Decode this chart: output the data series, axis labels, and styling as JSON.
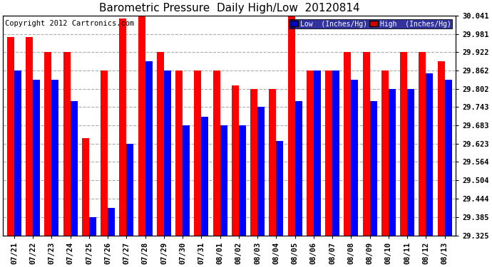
{
  "title": "Barometric Pressure  Daily High/Low  20120814",
  "copyright": "Copyright 2012 Cartronics.com",
  "dates": [
    "07/21",
    "07/22",
    "07/23",
    "07/24",
    "07/25",
    "07/26",
    "07/27",
    "07/28",
    "07/29",
    "07/30",
    "07/31",
    "08/01",
    "08/02",
    "08/03",
    "08/04",
    "08/05",
    "08/06",
    "08/07",
    "08/08",
    "08/09",
    "08/10",
    "08/11",
    "08/12",
    "08/13"
  ],
  "high": [
    29.971,
    29.971,
    29.922,
    29.922,
    29.642,
    29.862,
    30.031,
    30.041,
    29.922,
    29.862,
    29.862,
    29.862,
    29.812,
    29.802,
    29.802,
    30.041,
    29.862,
    29.862,
    29.922,
    29.922,
    29.862,
    29.922,
    29.922,
    29.892
  ],
  "low": [
    29.862,
    29.832,
    29.832,
    29.762,
    29.385,
    29.415,
    29.622,
    29.892,
    29.862,
    29.683,
    29.712,
    29.683,
    29.683,
    29.743,
    29.633,
    29.762,
    29.862,
    29.862,
    29.832,
    29.762,
    29.802,
    29.802,
    29.852,
    29.832
  ],
  "ylim_min": 29.325,
  "ylim_max": 30.041,
  "yticks": [
    29.325,
    29.385,
    29.444,
    29.504,
    29.564,
    29.623,
    29.683,
    29.743,
    29.802,
    29.862,
    29.922,
    29.981,
    30.041
  ],
  "bar_width": 0.38,
  "low_color": "#0000ff",
  "high_color": "#ff0000",
  "bg_color": "#ffffff",
  "grid_color": "#aaaaaa",
  "legend_bg_low": "#0000cc",
  "legend_bg_high": "#cc0000",
  "title_fontsize": 11,
  "tick_fontsize": 7.5,
  "copyright_fontsize": 7.5
}
